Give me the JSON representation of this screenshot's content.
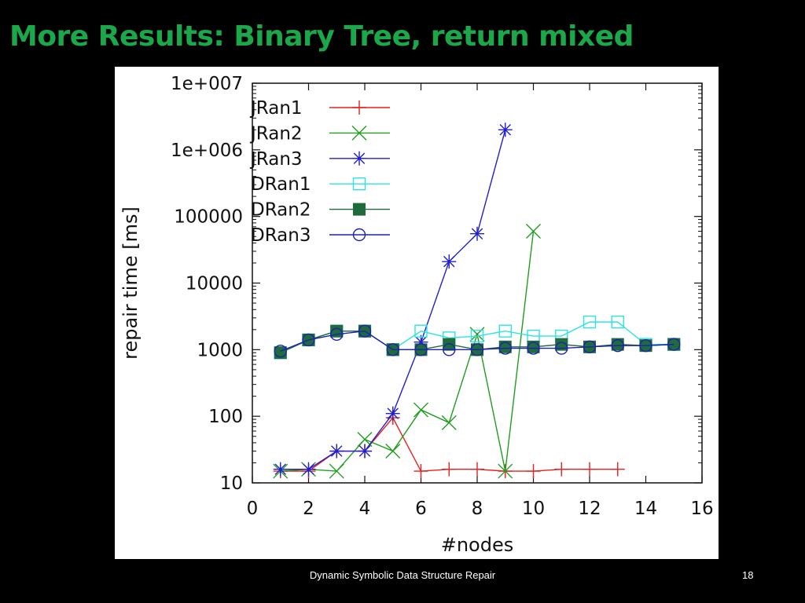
{
  "slide": {
    "title": "More Results: Binary Tree, return mixed",
    "footer": "Dynamic Symbolic Data Structure Repair",
    "page_number": "18"
  },
  "chart_data": {
    "type": "line",
    "xlabel": "#nodes",
    "ylabel": "repair time [ms]",
    "xlim": [
      0,
      16
    ],
    "ylim": [
      10,
      10000000
    ],
    "y_scale": "log",
    "x_ticks": [
      "0",
      "2",
      "4",
      "6",
      "8",
      "10",
      "12",
      "14",
      "16"
    ],
    "y_ticks": [
      "10",
      "100",
      "1000",
      "10000",
      "100000",
      "1e+006",
      "1e+007"
    ],
    "legend_position": "top-left",
    "series": [
      {
        "name": "JRan1",
        "color": "#e82020",
        "marker": "plus",
        "x": [
          1,
          2,
          3,
          4,
          5,
          6,
          7,
          8,
          9,
          10,
          11,
          12,
          13
        ],
        "y": [
          15,
          15,
          30,
          30,
          95,
          15,
          16,
          16,
          15,
          15,
          16,
          16,
          16
        ]
      },
      {
        "name": "JRan2",
        "color": "#1f9e1f",
        "marker": "cross",
        "x": [
          1,
          2,
          3,
          4,
          5,
          6,
          7,
          8,
          9,
          10
        ],
        "y": [
          15,
          16,
          15,
          45,
          30,
          125,
          80,
          1700,
          15,
          60000
        ]
      },
      {
        "name": "JRan3",
        "color": "#2020d0",
        "marker": "star",
        "x": [
          1,
          2,
          3,
          4,
          5,
          6,
          7,
          8,
          9
        ],
        "y": [
          16,
          16,
          30,
          30,
          110,
          1300,
          21000,
          55000,
          2000000
        ]
      },
      {
        "name": "DRan1",
        "color": "#2fe3e3",
        "marker": "open-square",
        "x": [
          1,
          2,
          3,
          4,
          5,
          6,
          7,
          8,
          9,
          10,
          11,
          12,
          13,
          14,
          15
        ],
        "y": [
          900,
          1400,
          1900,
          1900,
          1000,
          1900,
          1500,
          1600,
          1900,
          1600,
          1600,
          2600,
          2600,
          1200,
          1200
        ]
      },
      {
        "name": "DRan2",
        "color": "#1e6b3c",
        "marker": "filled-square",
        "x": [
          1,
          2,
          3,
          4,
          5,
          6,
          7,
          8,
          9,
          10,
          11,
          12,
          13,
          14,
          15
        ],
        "y": [
          900,
          1400,
          1900,
          1900,
          1000,
          1000,
          1200,
          1000,
          1100,
          1100,
          1200,
          1100,
          1200,
          1150,
          1200
        ]
      },
      {
        "name": "DRan3",
        "color": "#2020b0",
        "marker": "open-circle",
        "x": [
          1,
          2,
          3,
          4,
          5,
          6,
          7,
          8,
          9,
          10,
          11,
          12,
          13,
          14,
          15
        ],
        "y": [
          950,
          1400,
          1700,
          1900,
          1000,
          1000,
          1000,
          1000,
          1050,
          1050,
          1050,
          1100,
          1150,
          1150,
          1200
        ]
      }
    ]
  }
}
